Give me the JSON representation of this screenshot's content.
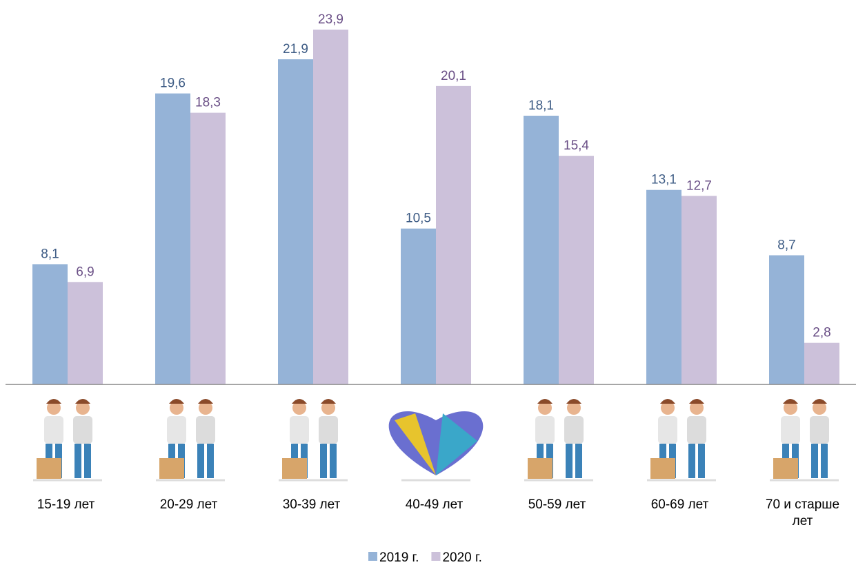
{
  "chart_data": {
    "type": "bar",
    "categories": [
      "15-19 лет",
      "20-29 лет",
      "30-39 лет",
      "40-49 лет",
      "50-59 лет",
      "60-69 лет",
      "70 и старше лет"
    ],
    "series": [
      {
        "name": "2019 г.",
        "color": "#95b3d7",
        "label_color": "#3e5c85",
        "values": [
          8.1,
          19.6,
          21.9,
          10.5,
          18.1,
          13.1,
          8.7
        ],
        "value_labels": [
          "8,1",
          "19,6",
          "21,9",
          "10,5",
          "18,1",
          "13,1",
          "8,7"
        ]
      },
      {
        "name": "2020 г.",
        "color": "#ccc1da",
        "label_color": "#6a4f86",
        "values": [
          6.9,
          18.3,
          23.9,
          20.1,
          15.4,
          12.7,
          2.8
        ],
        "value_labels": [
          "6,9",
          "18,3",
          "23,9",
          "20,1",
          "15,4",
          "12,7",
          "2,8"
        ]
      }
    ],
    "legend": "bottom"
  }
}
